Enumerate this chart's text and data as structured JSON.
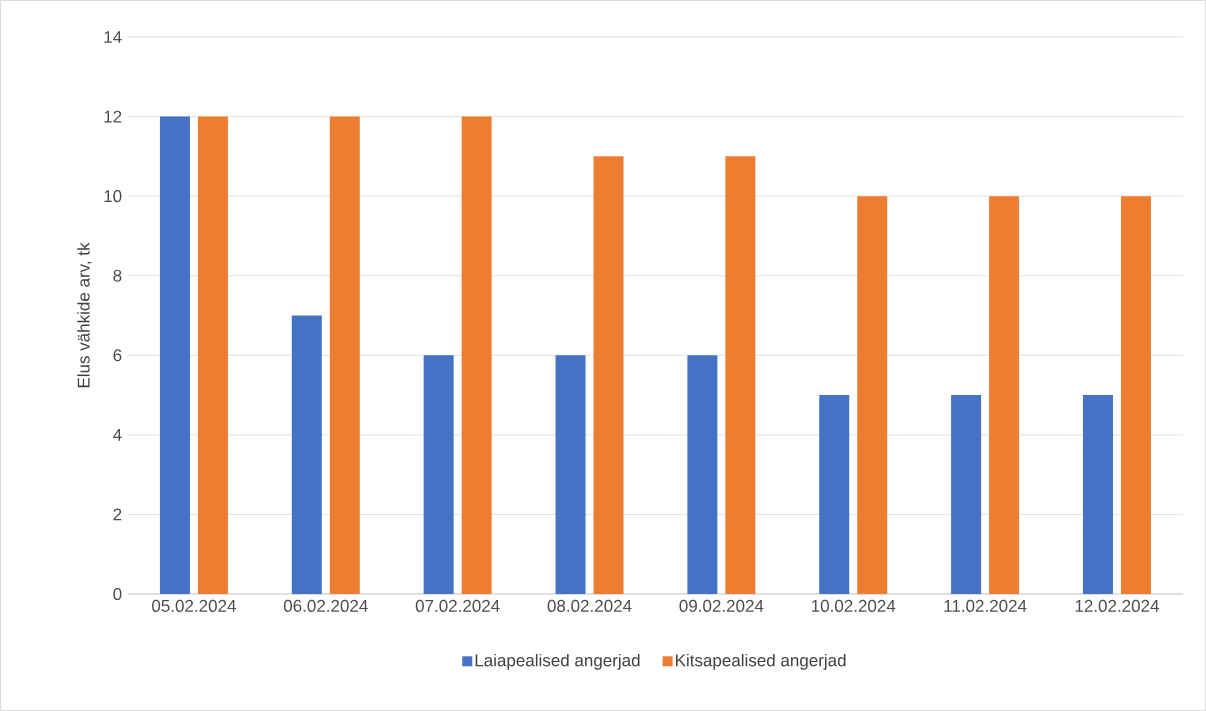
{
  "chart_data": {
    "type": "bar",
    "ylabel": "Elus vähkide arv, tk",
    "categories": [
      "05.02.2024",
      "06.02.2024",
      "07.02.2024",
      "08.02.2024",
      "09.02.2024",
      "10.02.2024",
      "11.02.2024",
      "12.02.2024"
    ],
    "series": [
      {
        "name": "Laiapealised angerjad",
        "color": "#4472c4",
        "values": [
          12,
          7,
          6,
          6,
          6,
          5,
          5,
          5
        ]
      },
      {
        "name": "Kitsapealised angerjad",
        "color": "#ed7d31",
        "values": [
          12,
          12,
          12,
          11,
          11,
          10,
          10,
          10
        ]
      }
    ],
    "ylim": [
      0,
      14
    ],
    "yticks": [
      0,
      2,
      4,
      6,
      8,
      10,
      12,
      14
    ],
    "grid": "y",
    "legend": "bottom"
  }
}
